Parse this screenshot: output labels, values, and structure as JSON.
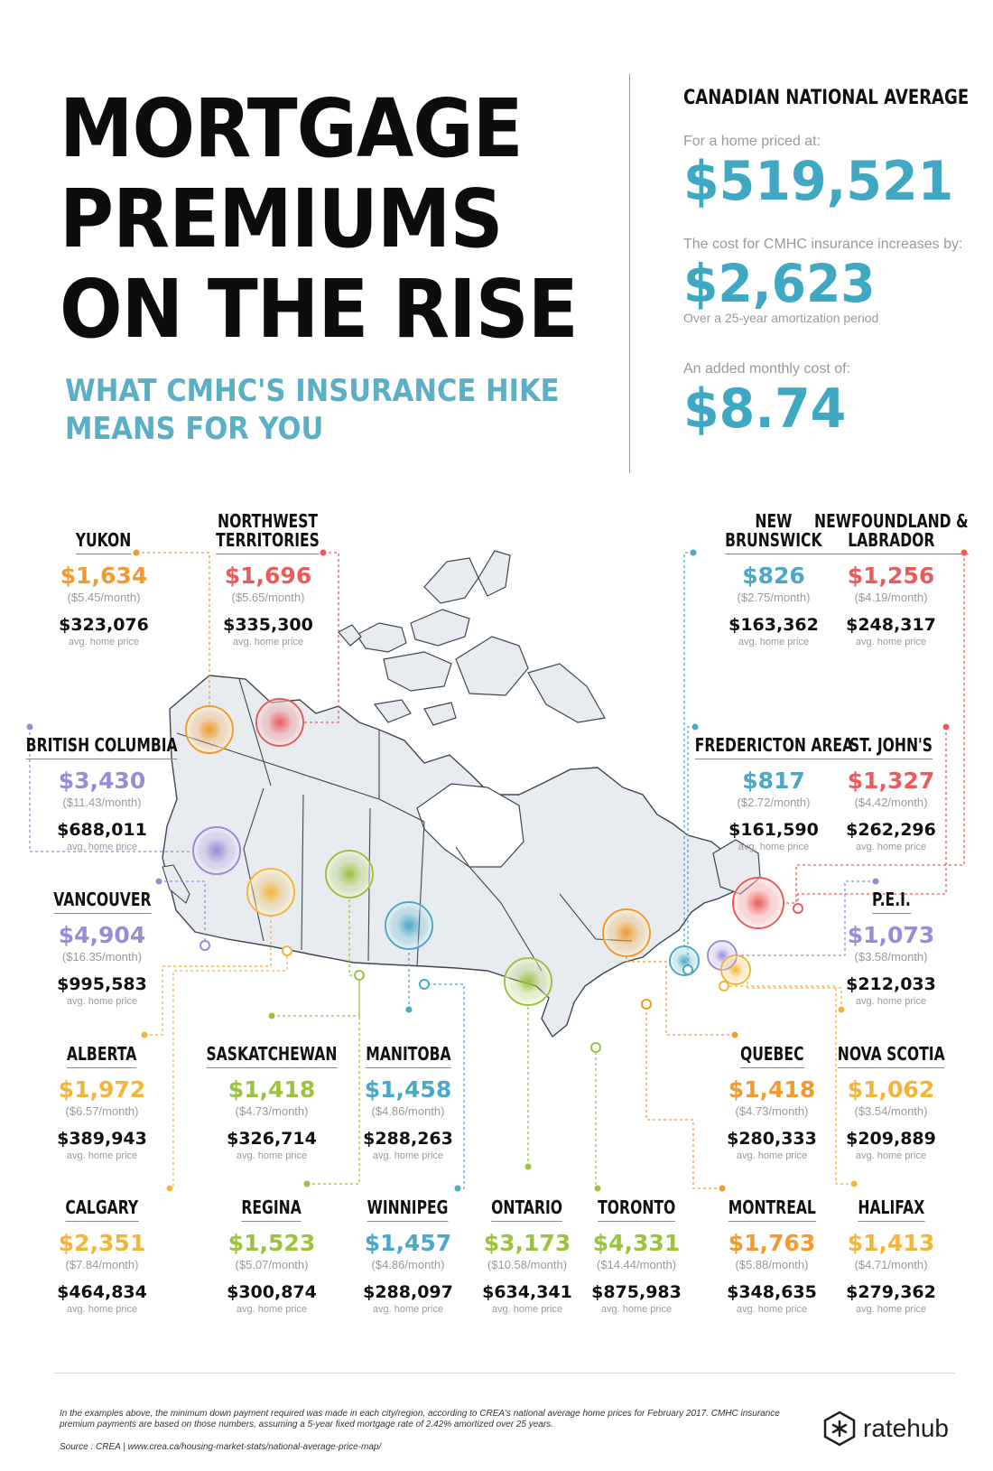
{
  "title": {
    "line1": "MORTGAGE",
    "line2": "PREMIUMS",
    "line3": "ON THE RISE"
  },
  "subtitle": {
    "line1": "WHAT CMHC'S INSURANCE HIKE",
    "line2": "MEANS FOR YOU"
  },
  "national": {
    "heading": "CANADIAN NATIONAL AVERAGE",
    "price_label": "For a home priced at:",
    "price": "$519,521",
    "cost_label": "The cost for CMHC insurance increases by:",
    "cost": "$2,623",
    "cost_note": "Over a 25-year amortization period",
    "monthly_label": "An added monthly cost of:",
    "monthly": "$8.74"
  },
  "colors": {
    "orange": "#f39a2d",
    "red": "#ec5b5b",
    "purple": "#9b8ad6",
    "yellow": "#f4b43a",
    "green": "#9cc23e",
    "blue": "#4aa9c9",
    "map_fill": "#e8ecf0",
    "map_stroke": "#3d4650"
  },
  "avg_home_price_label": "avg. home price",
  "regions": [
    {
      "id": "yukon",
      "name": "YUKON",
      "premium": "$1,634",
      "monthly": "($5.45/month)",
      "price": "$323,076",
      "color": "orange"
    },
    {
      "id": "nwt",
      "name_line1": "NORTHWEST",
      "name_line2": "TERRITORIES",
      "premium": "$1,696",
      "monthly": "($5.65/month)",
      "price": "$335,300",
      "color": "red"
    },
    {
      "id": "nb",
      "name_line1": "NEW",
      "name_line2": "BRUNSWICK",
      "premium": "$826",
      "monthly": "($2.75/month)",
      "price": "$163,362",
      "color": "blue"
    },
    {
      "id": "nl",
      "name_line1": "NEWFOUNDLAND &",
      "name_line2": "LABRADOR",
      "premium": "$1,256",
      "monthly": "($4.19/month)",
      "price": "$248,317",
      "color": "red"
    },
    {
      "id": "bc",
      "name": "BRITISH COLUMBIA",
      "premium": "$3,430",
      "monthly": "($11.43/month)",
      "price": "$688,011",
      "color": "purple"
    },
    {
      "id": "fredericton",
      "name": "FREDERICTON AREA",
      "premium": "$817",
      "monthly": "($2.72/month)",
      "price": "$161,590",
      "color": "blue"
    },
    {
      "id": "stjohns",
      "name": "ST. JOHN'S",
      "premium": "$1,327",
      "monthly": "($4.42/month)",
      "price": "$262,296",
      "color": "red"
    },
    {
      "id": "vancouver",
      "name": "VANCOUVER",
      "premium": "$4,904",
      "monthly": "($16.35/month)",
      "price": "$995,583",
      "color": "purple"
    },
    {
      "id": "pei",
      "name": "P.E.I.",
      "premium": "$1,073",
      "monthly": "($3.58/month)",
      "price": "$212,033",
      "color": "purple"
    },
    {
      "id": "alberta",
      "name": "ALBERTA",
      "premium": "$1,972",
      "monthly": "($6.57/month)",
      "price": "$389,943",
      "color": "yellow"
    },
    {
      "id": "sask",
      "name": "SASKATCHEWAN",
      "premium": "$1,418",
      "monthly": "($4.73/month)",
      "price": "$326,714",
      "color": "green"
    },
    {
      "id": "manitoba",
      "name": "MANITOBA",
      "premium": "$1,458",
      "monthly": "($4.86/month)",
      "price": "$288,263",
      "color": "blue"
    },
    {
      "id": "quebec",
      "name": "QUEBEC",
      "premium": "$1,418",
      "monthly": "($4.73/month)",
      "price": "$280,333",
      "color": "orange"
    },
    {
      "id": "ns",
      "name": "NOVA SCOTIA",
      "premium": "$1,062",
      "monthly": "($3.54/month)",
      "price": "$209,889",
      "color": "yellow"
    },
    {
      "id": "calgary",
      "name": "CALGARY",
      "premium": "$2,351",
      "monthly": "($7.84/month)",
      "price": "$464,834",
      "color": "yellow"
    },
    {
      "id": "regina",
      "name": "REGINA",
      "premium": "$1,523",
      "monthly": "($5.07/month)",
      "price": "$300,874",
      "color": "green"
    },
    {
      "id": "winnipeg",
      "name": "WINNIPEG",
      "premium": "$1,457",
      "monthly": "($4.86/month)",
      "price": "$288,097",
      "color": "blue"
    },
    {
      "id": "ontario",
      "name": "ONTARIO",
      "premium": "$3,173",
      "monthly": "($10.58/month)",
      "price": "$634,341",
      "color": "green"
    },
    {
      "id": "toronto",
      "name": "TORONTO",
      "premium": "$4,331",
      "monthly": "($14.44/month)",
      "price": "$875,983",
      "color": "green"
    },
    {
      "id": "montreal",
      "name": "MONTREAL",
      "premium": "$1,763",
      "monthly": "($5.88/month)",
      "price": "$348,635",
      "color": "orange"
    },
    {
      "id": "halifax",
      "name": "HALIFAX",
      "premium": "$1,413",
      "monthly": "($4.71/month)",
      "price": "$279,362",
      "color": "yellow"
    }
  ],
  "footer": {
    "note": "In the examples above, the minimum down payment required was made in each city/region, according to CREA's national average home prices for February 2017. CMHC insurance premium payments are based on those numbers, assuming a 5-year fixed mortgage rate of 2.42% amortized over 25 years.",
    "source": "Source : CREA  |  www.crea.ca/housing-market-stats/national-average-price-map/",
    "brand": "ratehub",
    "brand_icon": "ratehub-logo-icon"
  }
}
